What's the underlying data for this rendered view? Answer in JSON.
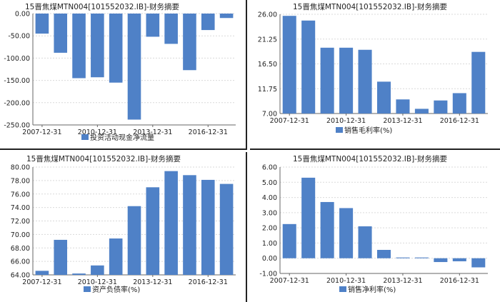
{
  "chart_data": [
    {
      "type": "bar",
      "title": "15晋焦煤MTN004[101552032.IB]-财务摘要",
      "legend": "投资活动现金净流量",
      "color": "#4F81C7",
      "ylim": [
        -250,
        0
      ],
      "yticks": [
        "0.00",
        "-50.00",
        "-100.00",
        "-150.00",
        "-200.00",
        "-250.00"
      ],
      "ytick_values": [
        0,
        -50,
        -100,
        -150,
        -200,
        -250
      ],
      "xticks": [
        "2007-12-31",
        "2010-12-31",
        "2013-12-31",
        "2016-12-31"
      ],
      "xtick_index": [
        0,
        3,
        6,
        9
      ],
      "values": [
        -45,
        -88,
        -145,
        -143,
        -155,
        -238,
        -52,
        -68,
        -127,
        -37,
        -10
      ]
    },
    {
      "type": "bar",
      "title": "15晋焦煤MTN004[101552032.IB]-财务摘要",
      "legend": "销售毛利率(%)",
      "color": "#4F81C7",
      "ylim": [
        7,
        26
      ],
      "yticks": [
        "26.00",
        "21.25",
        "16.50",
        "11.75",
        "7.00"
      ],
      "ytick_values": [
        26,
        21.25,
        16.5,
        11.75,
        7
      ],
      "xticks": [
        "2007-12-31",
        "2010-12-31",
        "2013-12-31",
        "2016-12-31"
      ],
      "xtick_index": [
        0,
        3,
        6,
        9
      ],
      "values": [
        25.7,
        24.8,
        19.6,
        19.6,
        19.2,
        13.1,
        9.7,
        7.9,
        9.5,
        10.9,
        18.8
      ]
    },
    {
      "type": "bar",
      "title": "15晋焦煤MTN004[101552032.IB]-财务摘要",
      "legend": "资产负债率(%)",
      "color": "#4F81C7",
      "ylim": [
        64,
        80
      ],
      "yticks": [
        "80.00",
        "78.00",
        "76.00",
        "74.00",
        "72.00",
        "70.00",
        "68.00",
        "66.00",
        "64.00"
      ],
      "ytick_values": [
        80,
        78,
        76,
        74,
        72,
        70,
        68,
        66,
        64
      ],
      "xticks": [
        "2007-12-31",
        "2010-12-31",
        "2013-12-31",
        "2016-12-31"
      ],
      "xtick_index": [
        0,
        3,
        6,
        9
      ],
      "values": [
        64.6,
        69.2,
        64.2,
        65.4,
        69.4,
        74.2,
        77.0,
        79.4,
        78.8,
        78.1,
        77.5
      ]
    },
    {
      "type": "bar",
      "title": "15晋焦煤MTN004[101552032.IB]-财务摘要",
      "legend": "销售净利率(%)",
      "color": "#4F81C7",
      "ylim": [
        -1,
        6
      ],
      "yticks": [
        "6.00",
        "5.00",
        "4.00",
        "3.00",
        "2.00",
        "1.00",
        "0.00",
        "-1.00"
      ],
      "ytick_values": [
        6,
        5,
        4,
        3,
        2,
        1,
        0,
        -1
      ],
      "xticks": [
        "2007-12-31",
        "2010-12-31",
        "2013-12-31",
        "2016-12-31"
      ],
      "xtick_index": [
        0,
        3,
        6,
        9
      ],
      "values": [
        2.25,
        5.3,
        3.7,
        3.3,
        2.1,
        0.55,
        0.05,
        0.05,
        -0.25,
        -0.2,
        -0.6
      ]
    }
  ]
}
